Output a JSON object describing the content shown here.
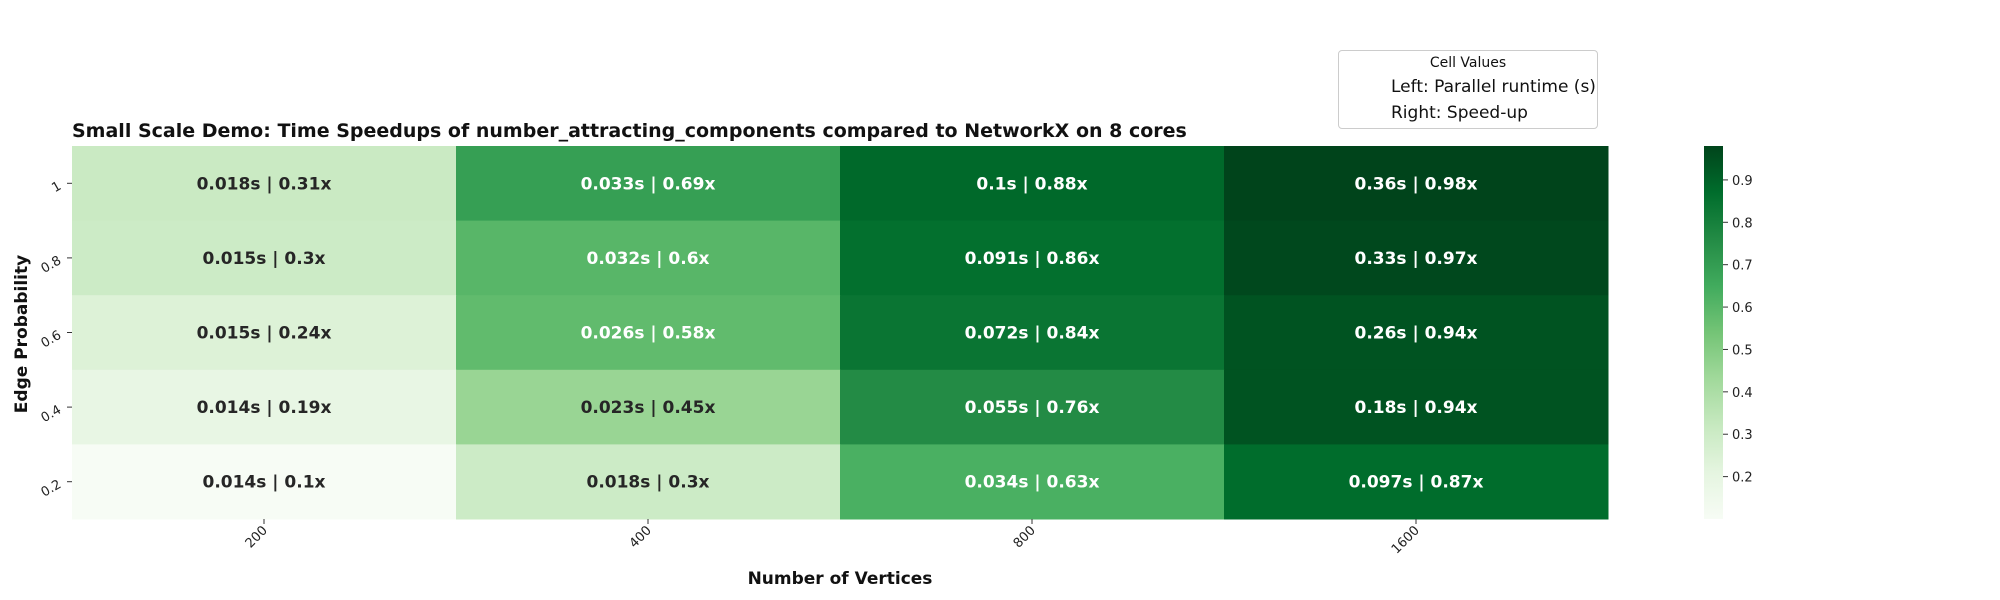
{
  "chart_data": {
    "type": "heatmap",
    "title": "Small Scale Demo: Time Speedups of number_attracting_components compared to NetworkX on 8 cores",
    "xlabel": "Number of Vertices",
    "ylabel": "Edge Probability",
    "x_categories": [
      "200",
      "400",
      "800",
      "1600"
    ],
    "y_categories": [
      "1",
      "0.8",
      "0.6",
      "0.4",
      "0.2"
    ],
    "runtimes": [
      [
        "0.018s",
        "0.033s",
        "0.1s",
        "0.36s"
      ],
      [
        "0.015s",
        "0.032s",
        "0.091s",
        "0.33s"
      ],
      [
        "0.015s",
        "0.026s",
        "0.072s",
        "0.26s"
      ],
      [
        "0.014s",
        "0.023s",
        "0.055s",
        "0.18s"
      ],
      [
        "0.014s",
        "0.018s",
        "0.034s",
        "0.097s"
      ]
    ],
    "values": [
      [
        0.31,
        0.69,
        0.88,
        0.98
      ],
      [
        0.3,
        0.6,
        0.86,
        0.97
      ],
      [
        0.24,
        0.58,
        0.84,
        0.94
      ],
      [
        0.19,
        0.45,
        0.76,
        0.94
      ],
      [
        0.1,
        0.3,
        0.63,
        0.87
      ]
    ],
    "cell_labels": [
      [
        "0.018s | 0.31x",
        "0.033s | 0.69x",
        "0.1s | 0.88x",
        "0.36s | 0.98x"
      ],
      [
        "0.015s | 0.3x",
        "0.032s | 0.6x",
        "0.091s | 0.86x",
        "0.33s | 0.97x"
      ],
      [
        "0.015s | 0.24x",
        "0.026s | 0.58x",
        "0.072s | 0.84x",
        "0.26s | 0.94x"
      ],
      [
        "0.014s | 0.19x",
        "0.023s | 0.45x",
        "0.055s | 0.76x",
        "0.18s | 0.94x"
      ],
      [
        "0.014s | 0.1x",
        "0.018s | 0.3x",
        "0.034s | 0.63x",
        "0.097s | 0.87x"
      ]
    ],
    "colormap": "Greens",
    "colorbar": {
      "range": [
        0.1,
        0.98
      ],
      "ticks": [
        0.2,
        0.3,
        0.4,
        0.5,
        0.6,
        0.7,
        0.8,
        0.9
      ],
      "tick_labels": [
        "0.2",
        "0.3",
        "0.4",
        "0.5",
        "0.6",
        "0.7",
        "0.8",
        "0.9"
      ]
    },
    "legend": {
      "title": "Cell Values",
      "entries": [
        "Left: Parallel runtime (s)",
        "Right: Speed-up"
      ],
      "placement": "top-right"
    }
  }
}
